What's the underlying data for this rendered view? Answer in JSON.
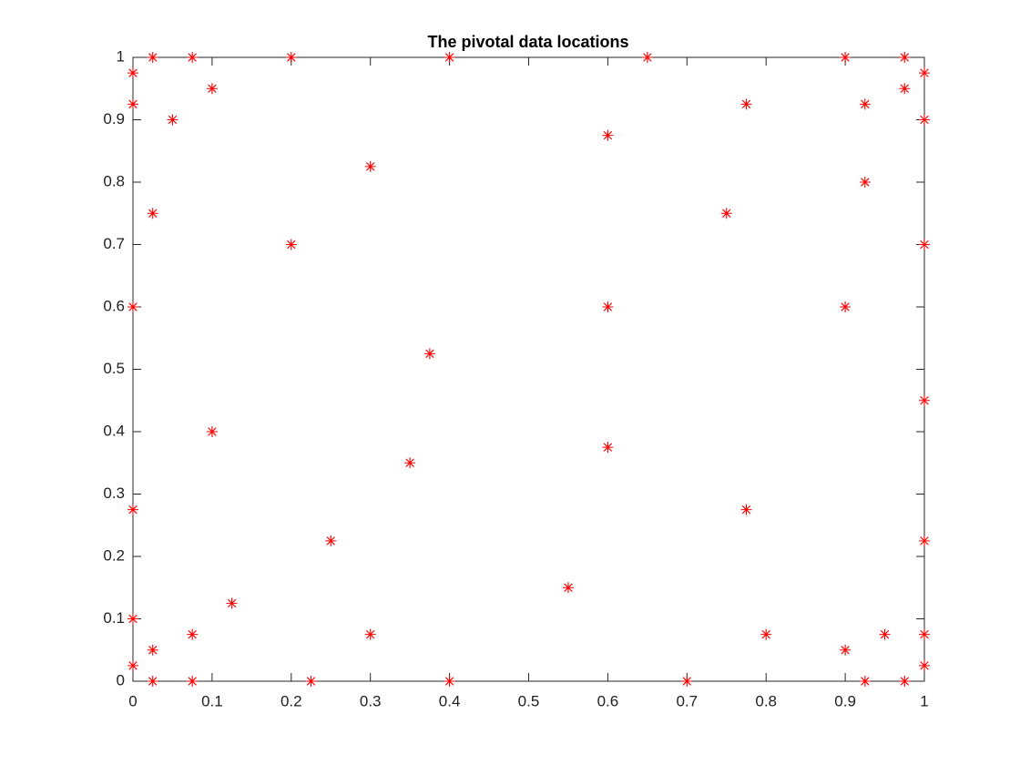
{
  "chart_data": {
    "type": "scatter",
    "title": "The pivotal data locations",
    "marker": "asterisk",
    "color": "#ff0000",
    "x": [
      0.025,
      0.075,
      0.2,
      0.4,
      0.65,
      0.9,
      0.975,
      0,
      0,
      0.05,
      0.1,
      0.3,
      0.6,
      0.775,
      0.925,
      0.975,
      1,
      1,
      0.925,
      0.025,
      0.2,
      0.75,
      1,
      0,
      0.6,
      0.9,
      0.375,
      1,
      0.1,
      0.6,
      0.35,
      0,
      0.775,
      0.25,
      1,
      0.55,
      0.125,
      0,
      0.075,
      0.3,
      0.8,
      0.95,
      1,
      0.025,
      0.9,
      0,
      1,
      0.025,
      0.075,
      0.225,
      0.4,
      0.7,
      0.925,
      0.975
    ],
    "y": [
      1,
      1,
      1,
      1,
      1,
      1,
      1,
      0.975,
      0.925,
      0.9,
      0.95,
      0.825,
      0.875,
      0.925,
      0.925,
      0.95,
      0.975,
      0.9,
      0.8,
      0.75,
      0.7,
      0.75,
      0.7,
      0.6,
      0.6,
      0.6,
      0.525,
      0.45,
      0.4,
      0.375,
      0.35,
      0.275,
      0.275,
      0.225,
      0.225,
      0.15,
      0.125,
      0.1,
      0.075,
      0.075,
      0.075,
      0.075,
      0.075,
      0.05,
      0.05,
      0.025,
      0.025,
      0,
      0,
      0,
      0,
      0,
      0,
      0
    ],
    "xlim": [
      0,
      1
    ],
    "ylim": [
      0,
      1
    ],
    "xticks": [
      0,
      0.1,
      0.2,
      0.3,
      0.4,
      0.5,
      0.6,
      0.7,
      0.8,
      0.9,
      1
    ],
    "yticks": [
      0,
      0.1,
      0.2,
      0.3,
      0.4,
      0.5,
      0.6,
      0.7,
      0.8,
      0.9,
      1
    ],
    "grid": false
  }
}
